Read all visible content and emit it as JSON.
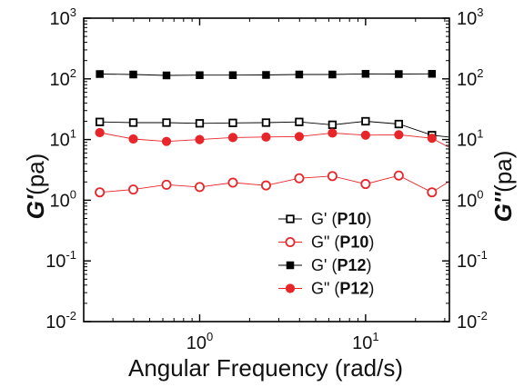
{
  "chart_data": {
    "type": "scatter",
    "xlabel": "Angular Frequency (rad/s)",
    "ylabel_left": {
      "italic": "G'",
      "rest": "(pa)"
    },
    "ylabel_right": {
      "italic": "G''",
      "rest": "(pa)"
    },
    "x_scale": "log",
    "y_scale": "log",
    "xlim": [
      0.2,
      32
    ],
    "ylim": [
      0.01,
      1000
    ],
    "x_ticks": [
      {
        "base": "10",
        "exp": "0",
        "value": 1
      },
      {
        "base": "10",
        "exp": "1",
        "value": 10
      }
    ],
    "y_ticks": [
      {
        "base": "10",
        "exp": "-2",
        "value": 0.01
      },
      {
        "base": "10",
        "exp": "-1",
        "value": 0.1
      },
      {
        "base": "10",
        "exp": "0",
        "value": 1
      },
      {
        "base": "10",
        "exp": "1",
        "value": 10
      },
      {
        "base": "10",
        "exp": "2",
        "value": 100
      },
      {
        "base": "10",
        "exp": "3",
        "value": 1000
      }
    ],
    "grid": false,
    "legend_position": "bottom-right",
    "x": [
      0.25,
      0.398,
      0.631,
      1.0,
      1.585,
      2.512,
      3.981,
      6.31,
      10.0,
      15.85,
      25.12,
      31.6
    ],
    "series": [
      {
        "name": "G' (P10)",
        "legend_main": "G' (",
        "legend_bold": "P10",
        "legend_close": ")",
        "marker": "square-open",
        "color": "#000000",
        "values": [
          19.5,
          19,
          19,
          18.5,
          18.8,
          19,
          19.5,
          17.5,
          20,
          18,
          11.8,
          11
        ]
      },
      {
        "name": "G\" (P10)",
        "legend_main": "G\" (",
        "legend_bold": "P10",
        "legend_close": ")",
        "marker": "circle-open",
        "color": "#e8262a",
        "values": [
          1.35,
          1.5,
          1.8,
          1.65,
          1.95,
          1.75,
          2.3,
          2.5,
          1.85,
          2.55,
          1.35,
          2.0
        ]
      },
      {
        "name": "G' (P12)",
        "legend_main": "G' (",
        "legend_bold": "P12",
        "legend_close": ")",
        "marker": "square-filled",
        "color": "#000000",
        "values": [
          120,
          118,
          114,
          115,
          115,
          116,
          118,
          118,
          121,
          120,
          121,
          null
        ]
      },
      {
        "name": "G\" (P12)",
        "legend_main": "G\" (",
        "legend_bold": "P12",
        "legend_close": ")",
        "marker": "circle-filled",
        "color": "#e8262a",
        "values": [
          13,
          10.2,
          9.3,
          10,
          10.8,
          11,
          11.2,
          12.8,
          11.8,
          12,
          10.5,
          7.5
        ]
      }
    ]
  }
}
